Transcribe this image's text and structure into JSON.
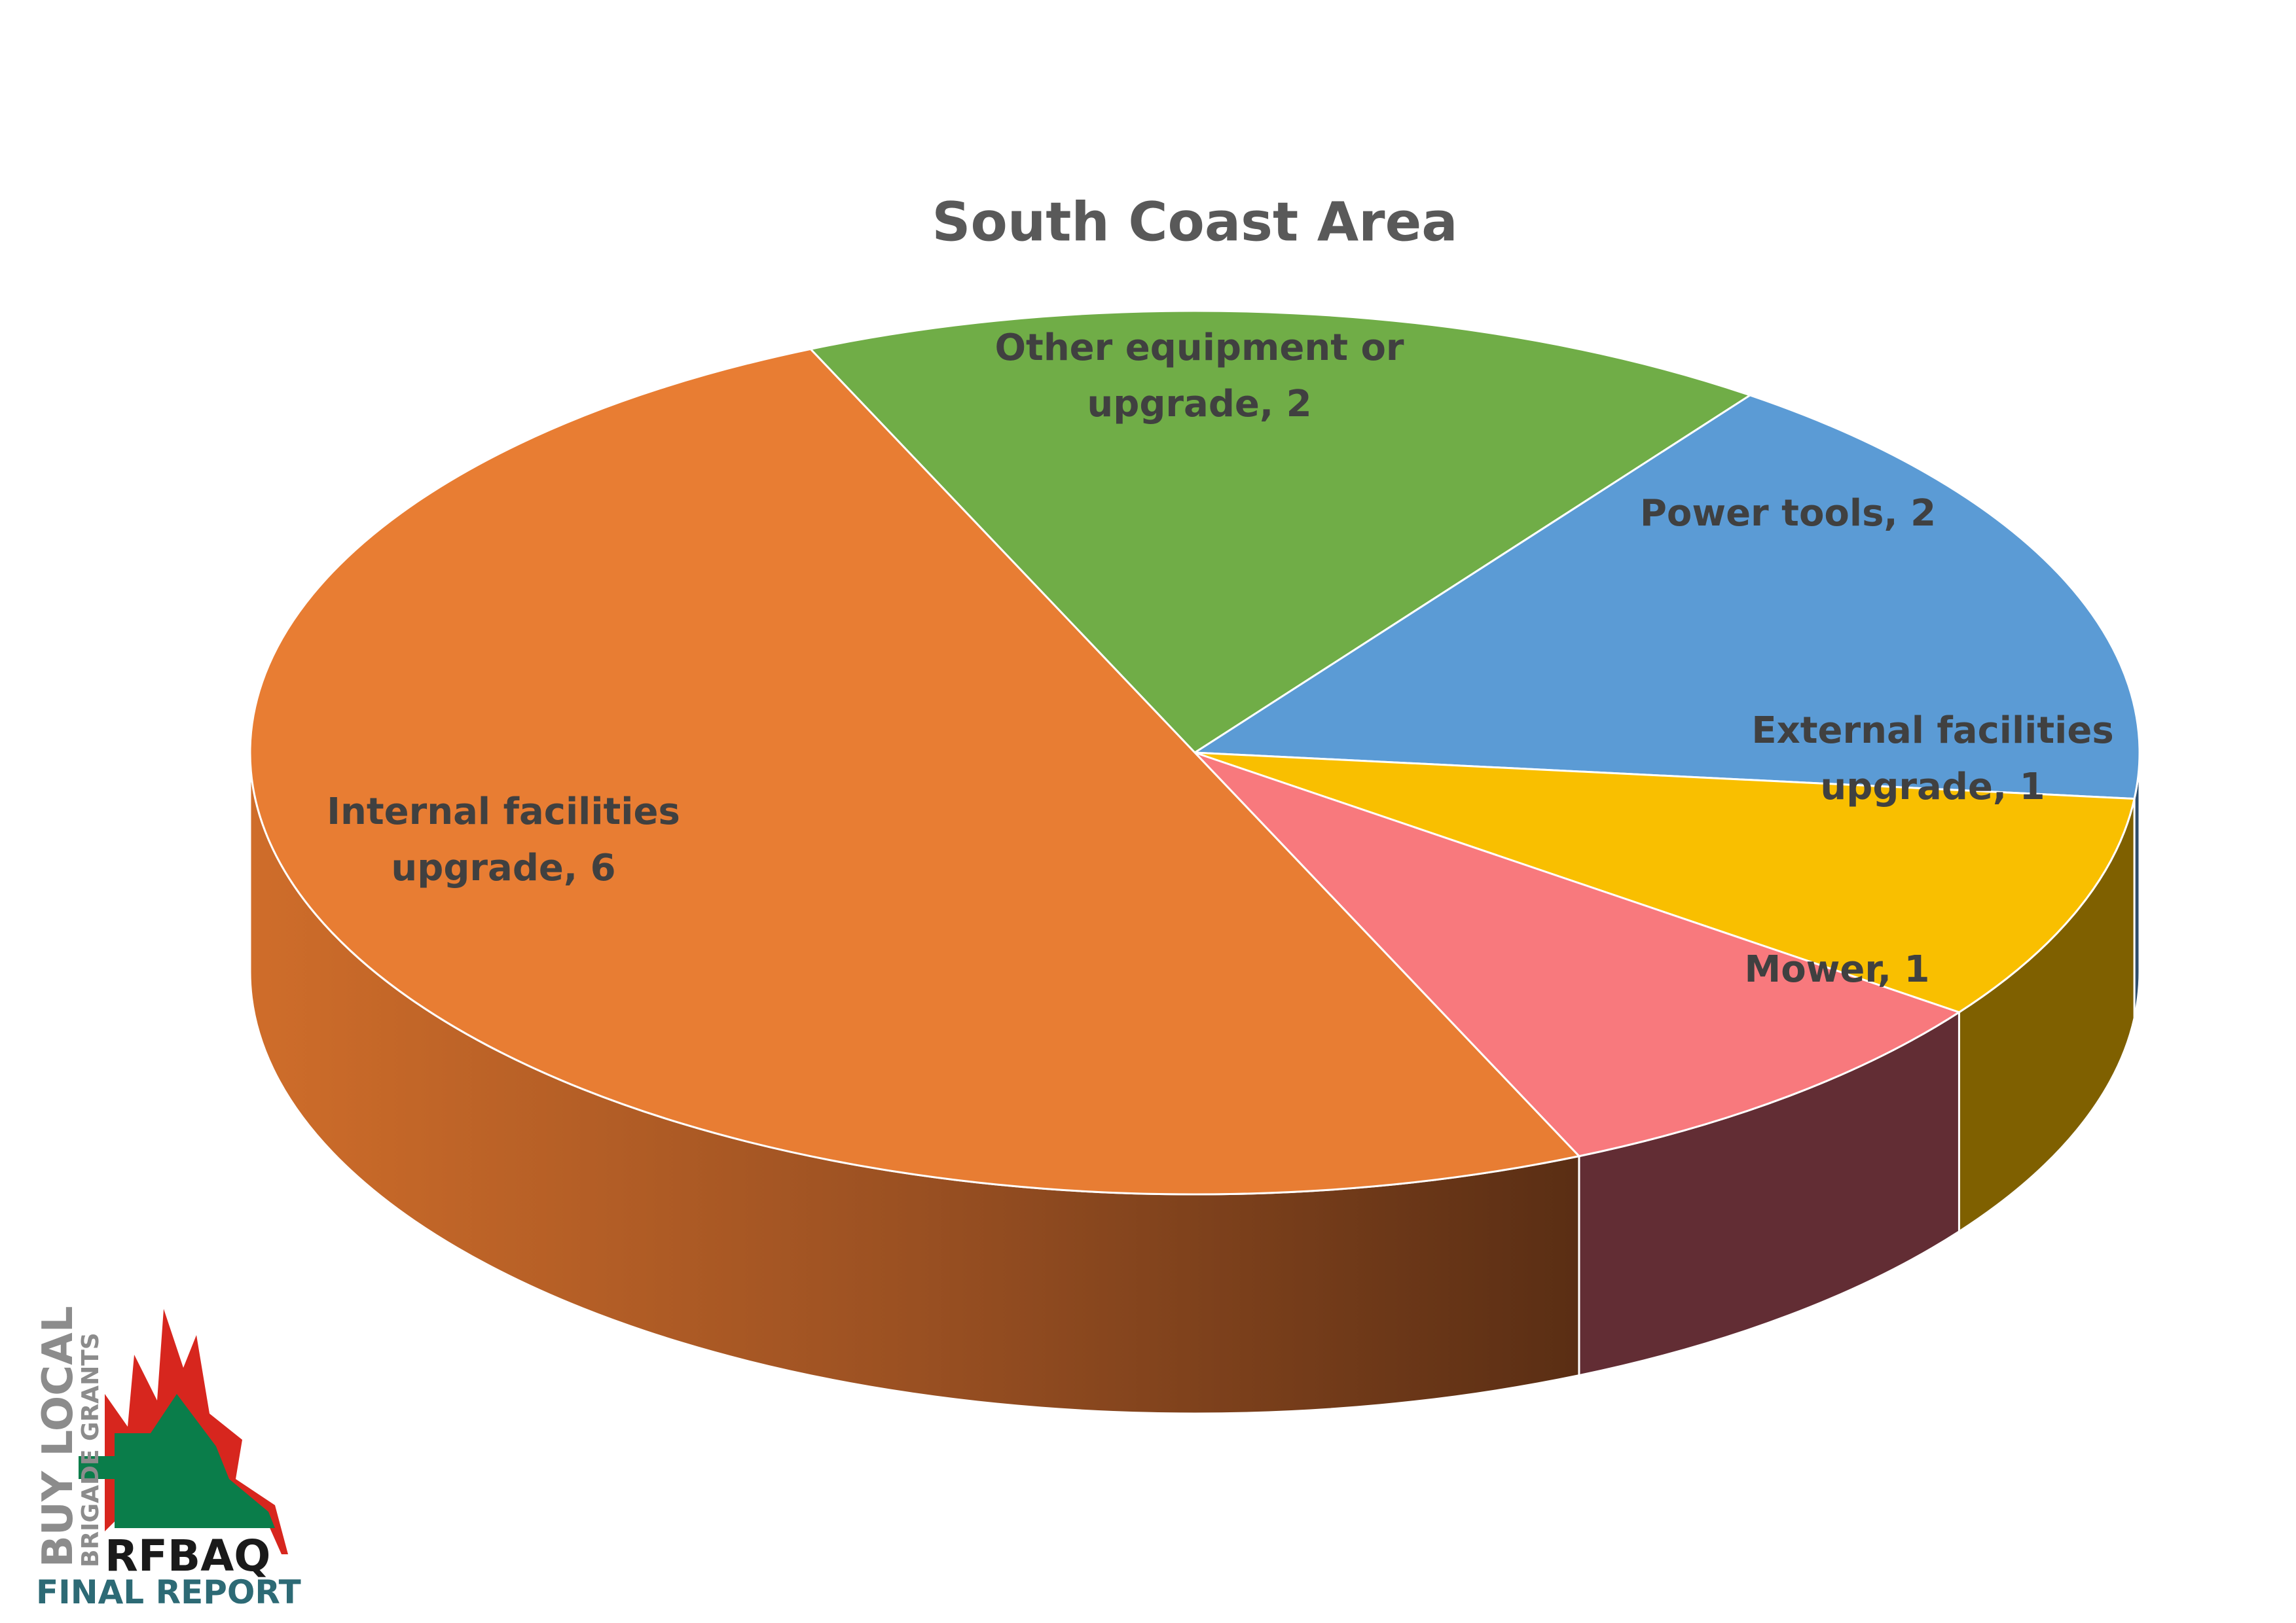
{
  "chart_data": {
    "type": "pie3d",
    "title": "South Coast Area",
    "values": [
      2,
      2,
      1,
      1,
      6
    ],
    "value_labels": [
      "Other equipment or upgrade, 2",
      "Power tools, 2",
      "External facilities upgrade, 1",
      "Mower, 1",
      "Internal facilities upgrade, 6"
    ],
    "colors": [
      "#70ad47",
      "#5b9bd5",
      "#f9bf00",
      "#f8797d",
      "#e87d33"
    ]
  },
  "logo": {
    "line1": "BUY LOCAL",
    "line2": "BRIGADE GRANTS",
    "line3": "RFBAQ",
    "line4": "FINAL REPORT"
  }
}
